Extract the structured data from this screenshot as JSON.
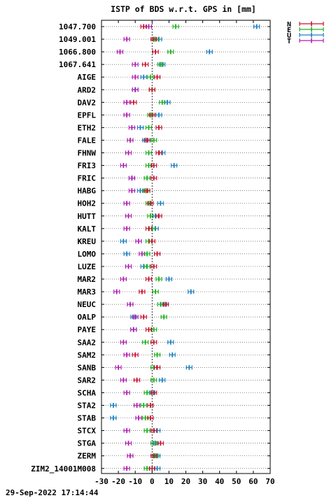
{
  "chart_data": {
    "type": "scatter",
    "title": "ISTP of BDS w.r.t. GPS in [mm]",
    "timestamp": "29-Sep-2022 17:14:44",
    "xlim": [
      -30,
      70
    ],
    "xticks": [
      -30,
      -20,
      -10,
      0,
      10,
      20,
      30,
      40,
      50,
      60,
      70
    ],
    "grid": true,
    "zero_line": true,
    "legend_position": "top-right",
    "series": [
      {
        "name": "N",
        "color": "#c8102e"
      },
      {
        "name": "E",
        "color": "#1fb01f"
      },
      {
        "name": "U",
        "color": "#1f7fc0"
      },
      {
        "name": "T",
        "color": "#b01fb0"
      }
    ],
    "stations": [
      {
        "label": "1047.700",
        "N": -5,
        "E": 14,
        "U": 62,
        "T": -2
      },
      {
        "label": "1049.001",
        "N": 1,
        "E": 2,
        "U": 4,
        "T": -15
      },
      {
        "label": "1066.800",
        "N": 2,
        "E": 11,
        "U": 34,
        "T": -19
      },
      {
        "label": "1067.641",
        "N": -4,
        "E": 5,
        "U": 6,
        "T": -10
      },
      {
        "label": "AIGE",
        "N": 3,
        "E": -1,
        "U": -5,
        "T": -10
      },
      {
        "label": "ARD2",
        "N": 0,
        "E": 0,
        "U": -10,
        "T": -10
      },
      {
        "label": "DAV2",
        "N": -11,
        "E": 6,
        "U": 9,
        "T": -15
      },
      {
        "label": "EPFL",
        "N": 0,
        "E": -1,
        "U": 4,
        "T": -15
      },
      {
        "label": "ETH2",
        "N": 4,
        "E": -2,
        "U": -7,
        "T": -12
      },
      {
        "label": "FALE",
        "N": -3,
        "E": 1,
        "U": -4,
        "T": -13
      },
      {
        "label": "FHNW",
        "N": 4,
        "E": -2,
        "U": 6,
        "T": -14
      },
      {
        "label": "FRI3",
        "N": 1,
        "E": -2,
        "U": 13,
        "T": -17
      },
      {
        "label": "FRIC",
        "N": 1,
        "E": -3,
        "U": -12,
        "T": -12
      },
      {
        "label": "HABG",
        "N": -3,
        "E": -4,
        "U": -7,
        "T": -12
      },
      {
        "label": "HOH2",
        "N": -1,
        "E": -2,
        "U": 5,
        "T": -15
      },
      {
        "label": "HUTT",
        "N": 4,
        "E": -1,
        "U": 2,
        "T": -14
      },
      {
        "label": "KALT",
        "N": -2,
        "E": 0,
        "U": 2,
        "T": -15
      },
      {
        "label": "KREU",
        "N": 0,
        "E": -2,
        "U": -17,
        "T": -8
      },
      {
        "label": "LOMO",
        "N": 3,
        "E": -3,
        "U": -15,
        "T": -6
      },
      {
        "label": "LUZE",
        "N": 1,
        "E": -3,
        "U": -5,
        "T": -14
      },
      {
        "label": "MAR2",
        "N": -2,
        "E": 4,
        "U": 10,
        "T": -17
      },
      {
        "label": "MAR3",
        "N": -6,
        "E": 2,
        "U": 23,
        "T": -21
      },
      {
        "label": "NEUC",
        "N": 8,
        "E": 5,
        "U": 7,
        "T": -13
      },
      {
        "label": "OALP",
        "N": -5,
        "E": 7,
        "U": -11,
        "T": -10
      },
      {
        "label": "PAYE",
        "N": -2,
        "E": 1,
        "U": -11,
        "T": -11
      },
      {
        "label": "SAA2",
        "N": 1,
        "E": -4,
        "U": 11,
        "T": -17
      },
      {
        "label": "SAM2",
        "N": -10,
        "E": 3,
        "U": 12,
        "T": -15
      },
      {
        "label": "SANB",
        "N": 3,
        "E": 1,
        "U": 22,
        "T": -20
      },
      {
        "label": "SAR2",
        "N": -9,
        "E": 1,
        "U": 6,
        "T": -17
      },
      {
        "label": "SCHA",
        "N": 1,
        "E": -3,
        "U": 0,
        "T": -15
      },
      {
        "label": "STA2",
        "N": -1,
        "E": -5,
        "U": -23,
        "T": -9
      },
      {
        "label": "STAB",
        "N": -1,
        "E": -4,
        "U": -23,
        "T": -8
      },
      {
        "label": "STCX",
        "N": 1,
        "E": -3,
        "U": 3,
        "T": -15
      },
      {
        "label": "STGA",
        "N": 5,
        "E": 1,
        "U": 2,
        "T": -14
      },
      {
        "label": "ZERM",
        "N": 1,
        "E": 2,
        "U": 3,
        "T": -13
      },
      {
        "label": "ZIM2_14001M008",
        "N": 0,
        "E": -3,
        "U": 3,
        "T": -15
      }
    ]
  }
}
